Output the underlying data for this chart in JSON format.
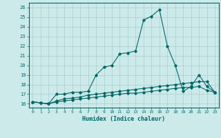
{
  "xlabel": "Humidex (Indice chaleur)",
  "background_color": "#cceaea",
  "grid_color": "#aacccc",
  "line_color": "#006666",
  "xlim": [
    -0.5,
    23.5
  ],
  "ylim": [
    15.6,
    26.5
  ],
  "xticks": [
    0,
    1,
    2,
    3,
    4,
    5,
    6,
    7,
    8,
    9,
    10,
    11,
    12,
    13,
    14,
    15,
    16,
    17,
    18,
    19,
    20,
    21,
    22,
    23
  ],
  "yticks": [
    16,
    17,
    18,
    19,
    20,
    21,
    22,
    23,
    24,
    25,
    26
  ],
  "series1_x": [
    0,
    1,
    2,
    3,
    4,
    5,
    6,
    7,
    8,
    9,
    10,
    11,
    12,
    13,
    14,
    15,
    16,
    17,
    18,
    19,
    20,
    21,
    22,
    23
  ],
  "series1_y": [
    16.2,
    16.1,
    16.0,
    17.0,
    17.0,
    17.2,
    17.2,
    17.3,
    19.0,
    19.8,
    20.0,
    21.2,
    21.3,
    21.5,
    24.7,
    25.1,
    25.8,
    22.0,
    20.0,
    17.3,
    17.8,
    19.0,
    17.8,
    17.2
  ],
  "series2_x": [
    0,
    1,
    2,
    3,
    4,
    5,
    6,
    7,
    8,
    9,
    10,
    11,
    12,
    13,
    14,
    15,
    16,
    17,
    18,
    19,
    20,
    21,
    22,
    23
  ],
  "series2_y": [
    16.2,
    16.1,
    16.0,
    16.3,
    16.5,
    16.6,
    16.7,
    16.9,
    17.0,
    17.1,
    17.2,
    17.3,
    17.4,
    17.5,
    17.6,
    17.7,
    17.8,
    17.9,
    18.0,
    18.1,
    18.2,
    18.3,
    18.3,
    17.2
  ],
  "series3_x": [
    0,
    1,
    2,
    3,
    4,
    5,
    6,
    7,
    8,
    9,
    10,
    11,
    12,
    13,
    14,
    15,
    16,
    17,
    18,
    19,
    20,
    21,
    22,
    23
  ],
  "series3_y": [
    16.2,
    16.1,
    16.0,
    16.2,
    16.3,
    16.4,
    16.5,
    16.6,
    16.7,
    16.8,
    16.9,
    17.0,
    17.1,
    17.1,
    17.2,
    17.3,
    17.4,
    17.5,
    17.6,
    17.7,
    17.7,
    17.8,
    17.4,
    17.2
  ]
}
